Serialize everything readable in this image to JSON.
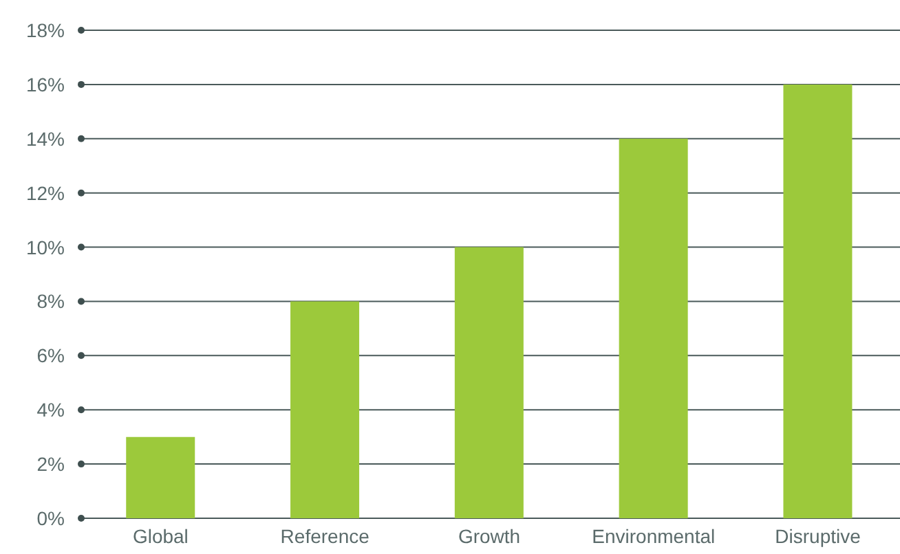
{
  "chart_data": {
    "type": "bar",
    "categories": [
      "Global",
      "Reference",
      "Growth",
      "Environmental",
      "Disruptive"
    ],
    "values": [
      3,
      8,
      10,
      14,
      16
    ],
    "color": "#9cc93b",
    "ylim": [
      0,
      18
    ],
    "yticks": [
      {
        "value": 0,
        "label": "0%"
      },
      {
        "value": 2,
        "label": "2%"
      },
      {
        "value": 4,
        "label": "4%"
      },
      {
        "value": 6,
        "label": "6%"
      },
      {
        "value": 8,
        "label": "8%"
      },
      {
        "value": 10,
        "label": "10%"
      },
      {
        "value": 12,
        "label": "12%"
      },
      {
        "value": 14,
        "label": "14%"
      },
      {
        "value": 16,
        "label": "16%"
      },
      {
        "value": 18,
        "label": "18%"
      }
    ],
    "grid": "y"
  }
}
